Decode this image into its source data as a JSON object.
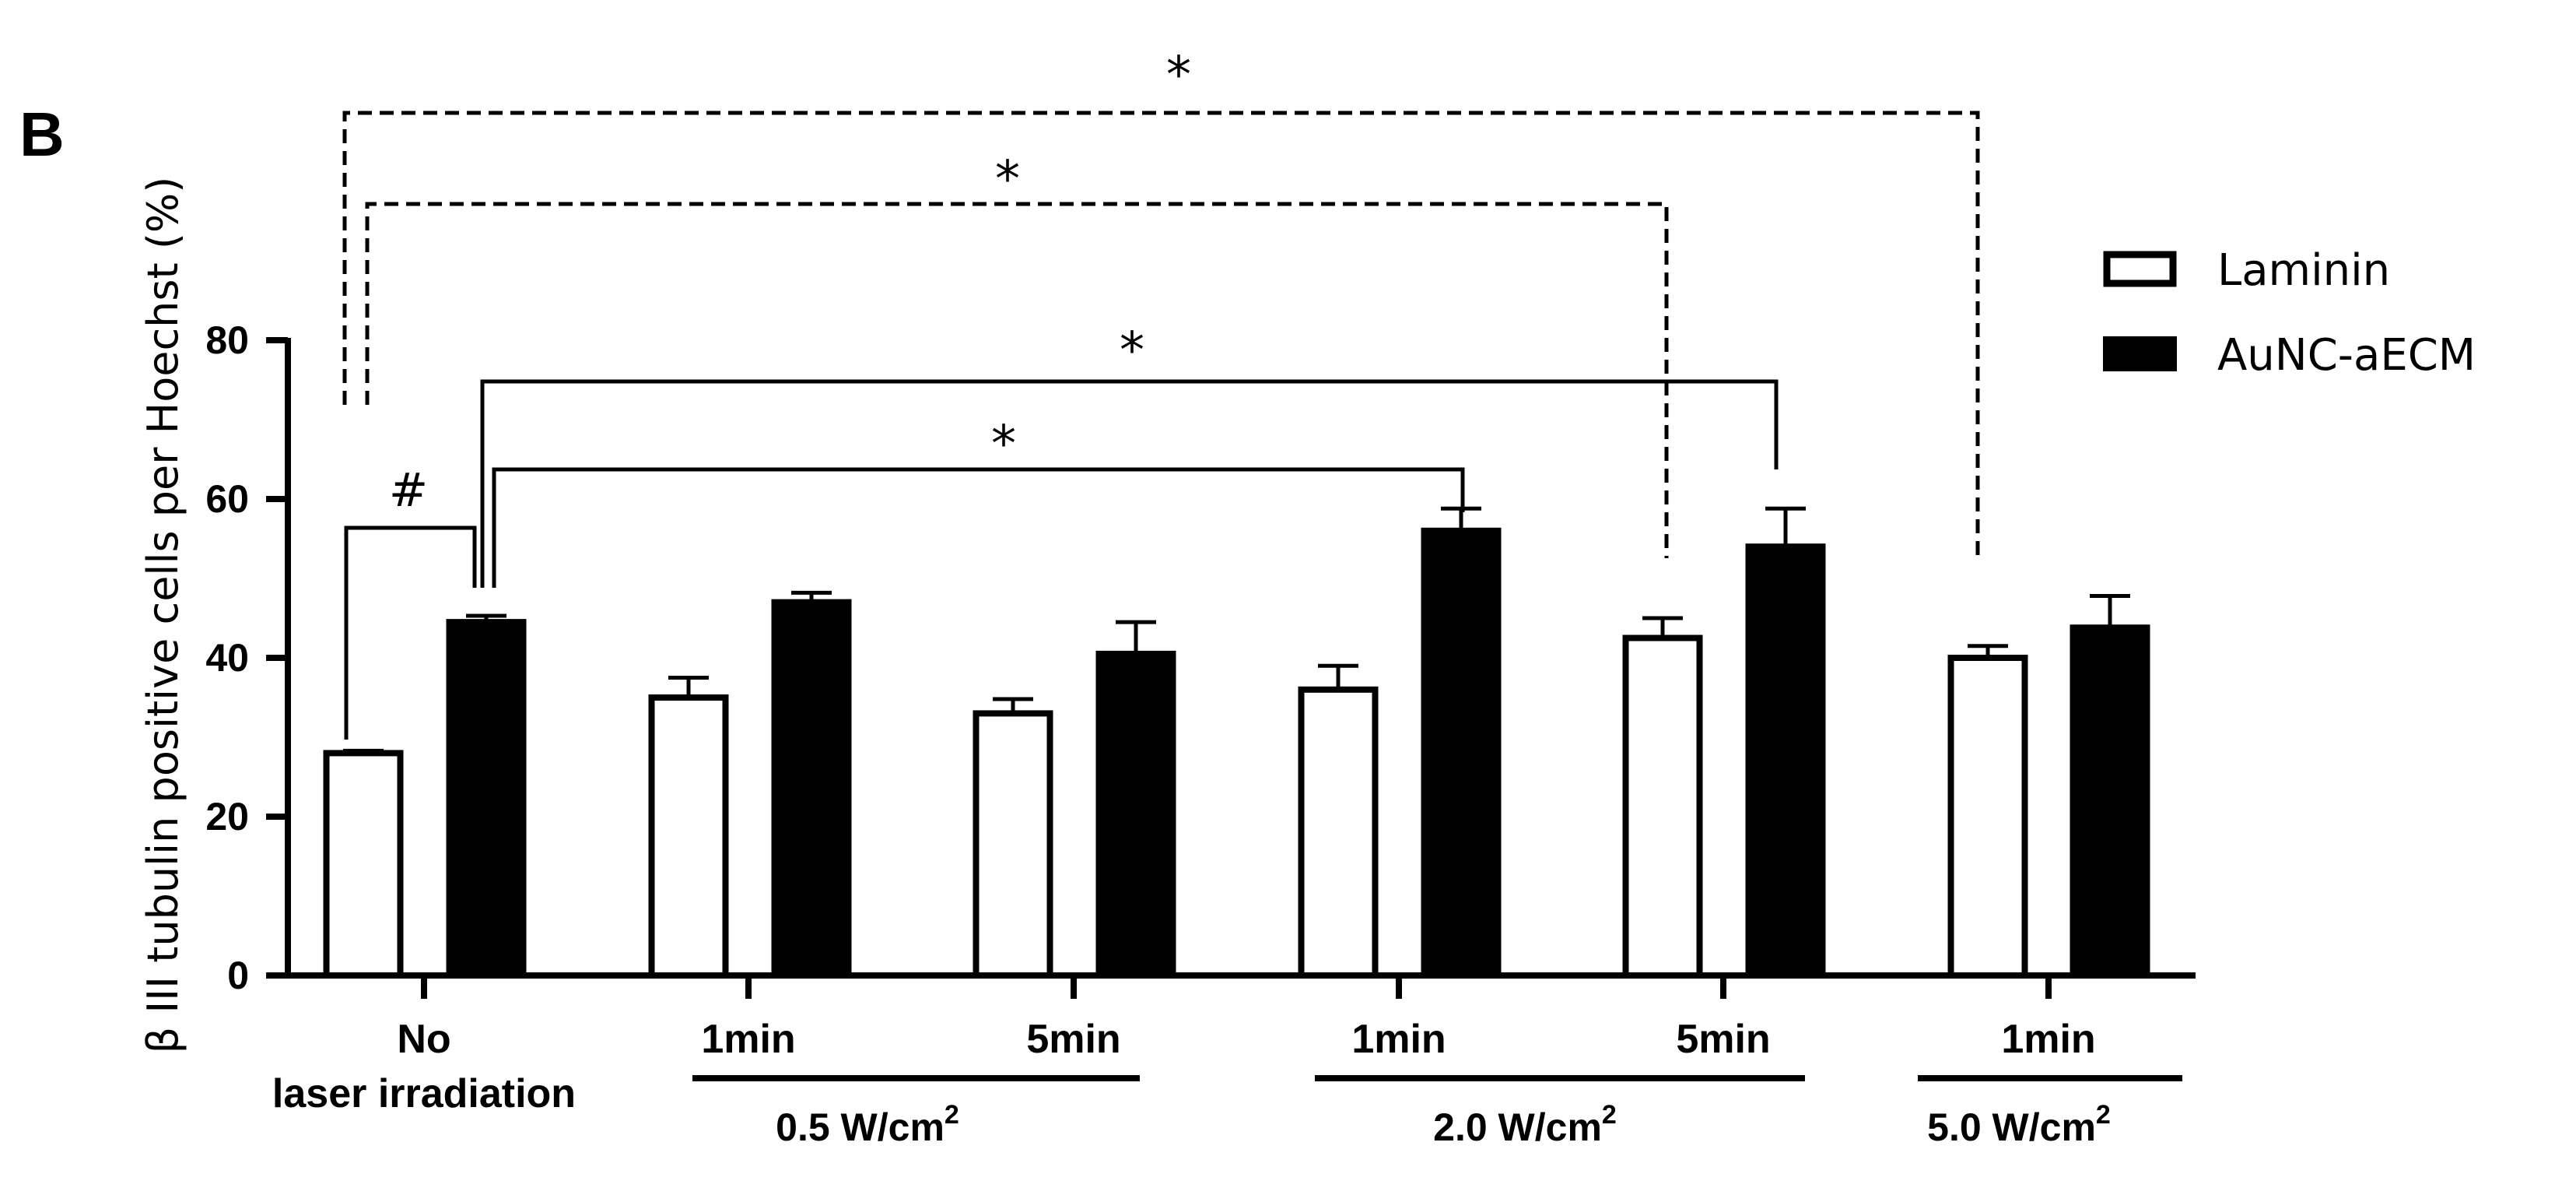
{
  "panel_label": "B",
  "chart_data": {
    "type": "bar",
    "title": "",
    "xlabel": "",
    "ylabel": "β III tubulin positive cells per Hoechst (%)",
    "ylim": [
      0,
      80
    ],
    "yticks": [
      "0",
      "20",
      "40",
      "60",
      "80"
    ],
    "yticks_values": [
      0,
      20,
      40,
      60,
      80
    ],
    "categories": [
      "No laser irradiation",
      "1min",
      "5min",
      "1min",
      "5min",
      "1min"
    ],
    "category_lines": [
      [
        "No",
        "laser irradiation"
      ],
      [
        "1min"
      ],
      [
        "5min"
      ],
      [
        "1min"
      ],
      [
        "5min"
      ],
      [
        "1min"
      ]
    ],
    "category_groups": [
      {
        "label": "0.5 W/cm",
        "sup": "2"
      },
      {
        "label": "2.0 W/cm",
        "sup": "2"
      },
      {
        "label": "5.0 W/cm",
        "sup": "2"
      }
    ],
    "series": [
      {
        "name": "Laminin",
        "color": "#ffffff",
        "values": [
          28.0,
          35.0,
          33.0,
          36.0,
          42.5,
          40.0
        ],
        "errors": [
          0.3,
          2.5,
          1.8,
          3.0,
          2.5,
          1.5
        ]
      },
      {
        "name": "AuNC-aECM",
        "color": "#000000",
        "values": [
          44.5,
          47.0,
          40.5,
          56.0,
          54.0,
          43.8
        ],
        "errors": [
          0.8,
          1.2,
          4.0,
          2.8,
          4.8,
          4.0
        ]
      }
    ],
    "legend_position": "top-right",
    "annotations": [
      {
        "symbol": "#",
        "from": [
          0,
          "Laminin"
        ],
        "to": [
          0,
          "AuNC-aECM"
        ],
        "style": "solid"
      },
      {
        "symbol": "*",
        "from": [
          0,
          "AuNC-aECM"
        ],
        "to": [
          3,
          "AuNC-aECM"
        ],
        "style": "solid"
      },
      {
        "symbol": "*",
        "from": [
          0,
          "AuNC-aECM"
        ],
        "to": [
          4,
          "AuNC-aECM"
        ],
        "style": "solid"
      },
      {
        "symbol": "*",
        "from": [
          0,
          "Laminin"
        ],
        "to": [
          4,
          "Laminin"
        ],
        "style": "dashed"
      },
      {
        "symbol": "*",
        "from": [
          0,
          "Laminin"
        ],
        "to": [
          5,
          "Laminin"
        ],
        "style": "dashed"
      }
    ]
  }
}
